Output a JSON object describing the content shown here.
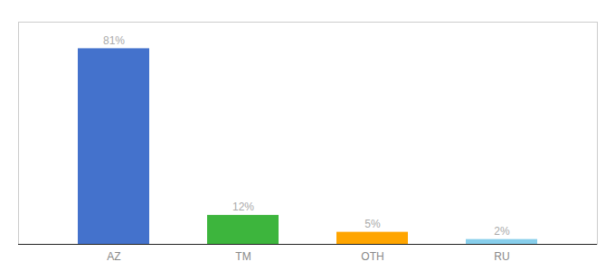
{
  "chart_data": {
    "type": "bar",
    "categories": [
      "AZ",
      "TM",
      "OTH",
      "RU"
    ],
    "values": [
      81,
      12,
      5,
      2
    ],
    "value_labels": [
      "81%",
      "12%",
      "5%",
      "2%"
    ],
    "colors": [
      "#4472CC",
      "#3DB53D",
      "#FFA500",
      "#87CEEB"
    ],
    "ylim": [
      0,
      92
    ],
    "data_labels": true,
    "grid": false,
    "tick_labels": "x"
  }
}
